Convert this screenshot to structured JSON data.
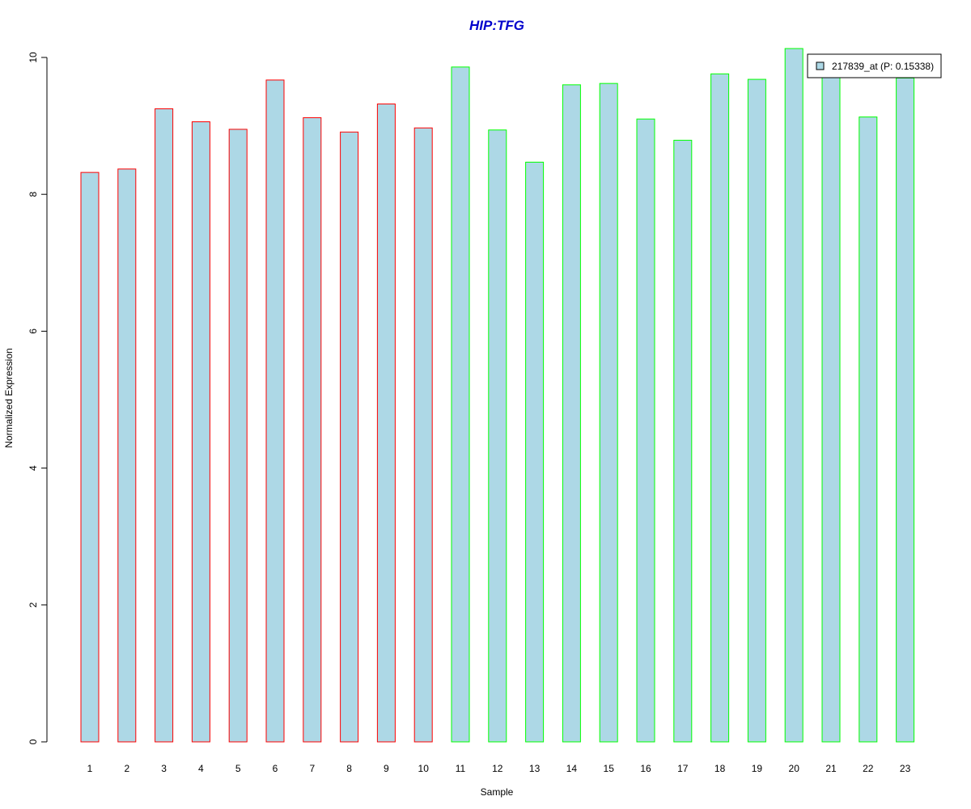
{
  "chart_data": {
    "type": "bar",
    "title": "HIP:TFG",
    "title_color": "#0000CC",
    "xlabel": "Sample",
    "ylabel": "Normalized Expression",
    "ylim": [
      0,
      10
    ],
    "yticks": [
      0,
      2,
      4,
      6,
      8,
      10
    ],
    "grid": false,
    "legend_position": "top-right",
    "legend": [
      {
        "label": "217839_at (P: 0.15338)",
        "fill": "#ADD8E6"
      }
    ],
    "bar_fill": "#ADD8E6",
    "categories": [
      "1",
      "2",
      "3",
      "4",
      "5",
      "6",
      "7",
      "8",
      "9",
      "10",
      "11",
      "12",
      "13",
      "14",
      "15",
      "16",
      "17",
      "18",
      "19",
      "20",
      "21",
      "22",
      "23"
    ],
    "values": [
      8.32,
      8.37,
      9.25,
      9.06,
      8.95,
      9.67,
      9.12,
      8.91,
      9.32,
      8.97,
      9.86,
      8.94,
      8.47,
      9.6,
      9.62,
      9.1,
      8.79,
      9.76,
      9.68,
      10.13,
      9.73,
      9.13,
      9.7
    ],
    "border_colors": [
      "#FF0000",
      "#FF0000",
      "#FF0000",
      "#FF0000",
      "#FF0000",
      "#FF0000",
      "#FF0000",
      "#FF0000",
      "#FF0000",
      "#FF0000",
      "#00FF00",
      "#00FF00",
      "#00FF00",
      "#00FF00",
      "#00FF00",
      "#00FF00",
      "#00FF00",
      "#00FF00",
      "#00FF00",
      "#00FF00",
      "#00FF00",
      "#00FF00",
      "#00FF00"
    ]
  }
}
